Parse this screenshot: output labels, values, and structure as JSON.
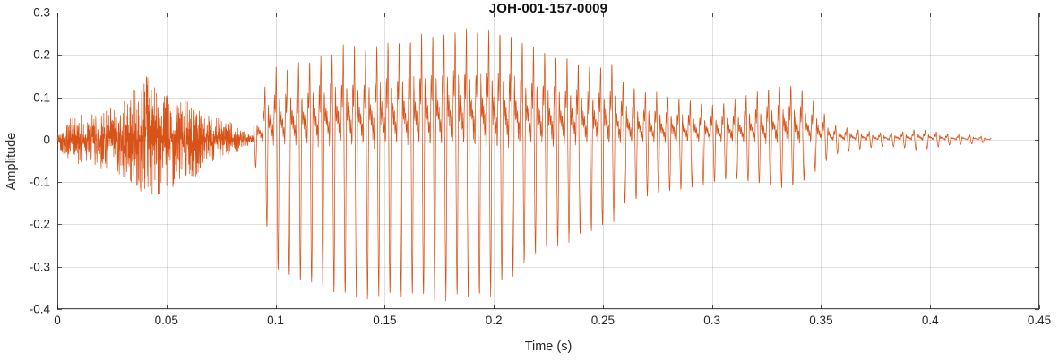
{
  "chart_data": {
    "type": "line",
    "title": "JOH-001-157-0009",
    "xlabel": "Time (s)",
    "ylabel": "Amplitude",
    "xlim": [
      0,
      0.45
    ],
    "ylim": [
      -0.4,
      0.3
    ],
    "xticks": [
      0,
      0.05,
      0.1,
      0.15,
      0.2,
      0.25,
      0.3,
      0.35,
      0.4,
      0.45
    ],
    "xtick_labels": [
      "0",
      "0.05",
      "0.1",
      "0.15",
      "0.2",
      "0.25",
      "0.3",
      "0.35",
      "0.4",
      "0.45"
    ],
    "yticks": [
      -0.4,
      -0.3,
      -0.2,
      -0.1,
      0,
      0.1,
      0.2,
      0.3
    ],
    "ytick_labels": [
      "-0.4",
      "-0.3",
      "-0.2",
      "-0.1",
      "0",
      "0.1",
      "0.2",
      "0.3"
    ],
    "grid": true,
    "box": true,
    "legend": null,
    "line_color": "#D95319",
    "grid_color_rgba": "rgba(38,38,38,0.15)",
    "axis_color": "#262626",
    "background": "#ffffff",
    "signal": {
      "description": "speech audio waveform: fricative noise burst 0-0.09 s, strong voiced vowel 0.09-0.26 s with deep negative peaks to -0.37, decaying voicing 0.26-0.30 s, second small voiced burst peaking near 0.335 s, low-amplitude ringing tail ending near 0.43 s",
      "f0_hz": 195,
      "end_time": 0.428,
      "noise_segment": {
        "t": [
          0.0,
          0.003,
          0.006,
          0.01,
          0.015,
          0.02,
          0.025,
          0.03,
          0.035,
          0.04,
          0.043,
          0.046,
          0.05,
          0.055,
          0.06,
          0.065,
          0.07,
          0.075,
          0.08,
          0.085,
          0.09
        ],
        "upper": [
          0.01,
          0.04,
          0.05,
          0.06,
          0.06,
          0.07,
          0.08,
          0.09,
          0.12,
          0.17,
          0.13,
          0.12,
          0.11,
          0.1,
          0.09,
          0.07,
          0.06,
          0.05,
          0.04,
          0.02,
          0.01
        ],
        "lower": [
          0.01,
          0.04,
          0.05,
          0.06,
          0.06,
          0.07,
          0.08,
          0.1,
          0.13,
          0.12,
          0.14,
          0.13,
          0.12,
          0.11,
          0.1,
          0.08,
          0.06,
          0.05,
          0.04,
          0.02,
          0.01
        ]
      },
      "voiced_segment": {
        "t": [
          0.09,
          0.095,
          0.1,
          0.11,
          0.12,
          0.13,
          0.14,
          0.15,
          0.16,
          0.17,
          0.18,
          0.19,
          0.2,
          0.21,
          0.215,
          0.22,
          0.23,
          0.24,
          0.25,
          0.255,
          0.26,
          0.27,
          0.28,
          0.29,
          0.3,
          0.31,
          0.32,
          0.33,
          0.335,
          0.34,
          0.345,
          0.35,
          0.355,
          0.36,
          0.37,
          0.38,
          0.39,
          0.395,
          0.4,
          0.41,
          0.42,
          0.428
        ],
        "upper": [
          0.03,
          0.12,
          0.16,
          0.17,
          0.19,
          0.21,
          0.21,
          0.22,
          0.23,
          0.24,
          0.25,
          0.25,
          0.25,
          0.24,
          0.22,
          0.21,
          0.19,
          0.17,
          0.17,
          0.18,
          0.13,
          0.11,
          0.1,
          0.09,
          0.08,
          0.09,
          0.11,
          0.12,
          0.13,
          0.12,
          0.1,
          0.07,
          0.035,
          0.03,
          0.02,
          0.015,
          0.02,
          0.025,
          0.02,
          0.012,
          0.01,
          0.005
        ],
        "lower": [
          0.04,
          0.18,
          0.3,
          0.33,
          0.34,
          0.36,
          0.37,
          0.36,
          0.36,
          0.37,
          0.36,
          0.37,
          0.35,
          0.3,
          0.28,
          0.26,
          0.24,
          0.22,
          0.2,
          0.18,
          0.15,
          0.13,
          0.12,
          0.11,
          0.1,
          0.09,
          0.1,
          0.11,
          0.11,
          0.1,
          0.08,
          0.06,
          0.035,
          0.03,
          0.02,
          0.015,
          0.02,
          0.025,
          0.02,
          0.012,
          0.01,
          0.005
        ]
      }
    }
  }
}
